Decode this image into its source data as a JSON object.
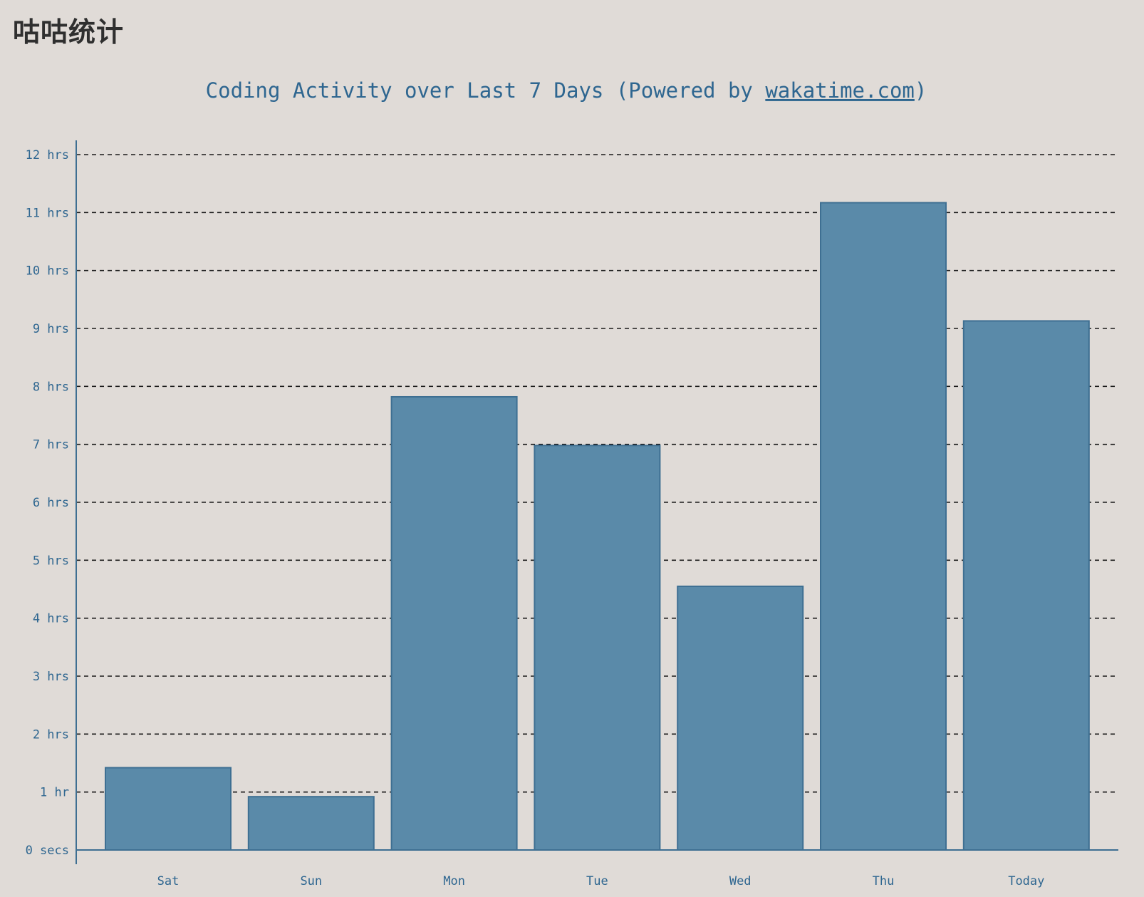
{
  "page": {
    "heading": "咕咕统计"
  },
  "chart_data": {
    "type": "bar",
    "title_prefix": "Coding Activity over Last 7 Days (Powered by ",
    "title_link": "wakatime.com",
    "title_suffix": ")",
    "categories": [
      "Sat",
      "Sun",
      "Mon",
      "Tue",
      "Wed",
      "Thu",
      "Today"
    ],
    "values": [
      1.42,
      0.92,
      7.82,
      6.98,
      4.55,
      11.17,
      9.13
    ],
    "value_unit": "hrs",
    "ylim": [
      0,
      12
    ],
    "yticks": [
      0,
      1,
      2,
      3,
      4,
      5,
      6,
      7,
      8,
      9,
      10,
      11,
      12
    ],
    "ytick_labels": [
      "0 secs",
      "1 hr",
      "2 hrs",
      "3 hrs",
      "4 hrs",
      "5 hrs",
      "6 hrs",
      "7 hrs",
      "8 hrs",
      "9 hrs",
      "10 hrs",
      "11 hrs",
      "12 hrs"
    ],
    "grid": true,
    "grid_style": "dashed",
    "bar_color": "#5a8aa9",
    "bar_edge_color": "#3e6f92",
    "axis_color": "#3e6f92",
    "text_color": "#2e6690",
    "legend": "none"
  }
}
